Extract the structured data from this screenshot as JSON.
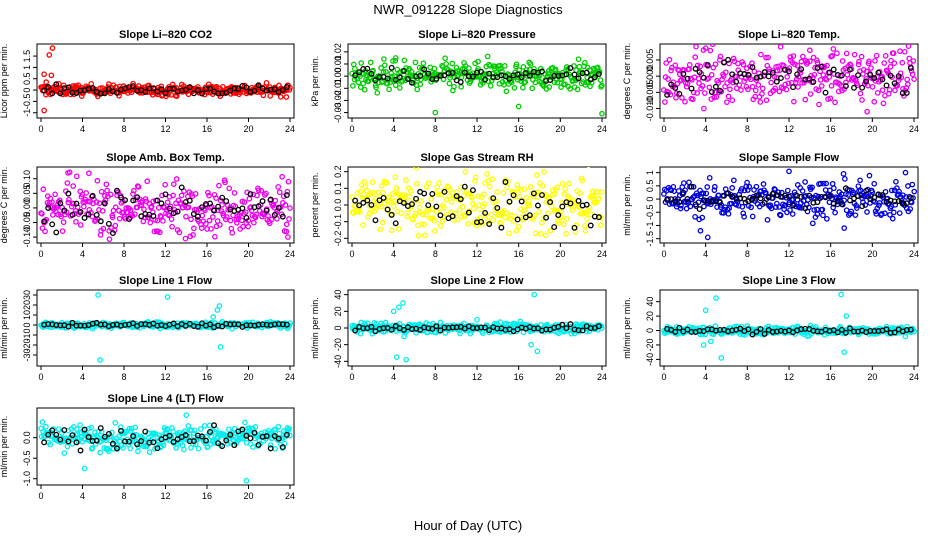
{
  "figure": {
    "title": "NWR_091228  Slope Diagnostics",
    "xlabel": "Hour of Day (UTC)"
  },
  "chart_data": [
    {
      "type": "scatter",
      "title": "Slope Li–820 CO2",
      "ylabel": "Licor ppm per min.",
      "color": "#ff0000",
      "xlim": [
        0,
        24
      ],
      "ylim": [
        -1.1,
        1.9
      ],
      "yticks": [
        "-1",
        "-0.5",
        "0",
        "0.5",
        "1",
        "1.5"
      ],
      "ytick_values": [
        -1,
        -0.5,
        0,
        0.5,
        1,
        1.5
      ],
      "xticks": [
        0,
        4,
        8,
        12,
        16,
        20,
        24
      ],
      "spread": 0.12,
      "black_spread": 0.1,
      "outliers": [
        [
          0.3,
          -0.9
        ],
        [
          0.3,
          0.7
        ],
        [
          0.8,
          1.55
        ],
        [
          1.1,
          1.85
        ],
        [
          1.0,
          0.65
        ],
        [
          0.5,
          0.35
        ]
      ],
      "points": [
        [
          2,
          0.05
        ],
        [
          6,
          0.02
        ],
        [
          10,
          -0.03
        ],
        [
          14,
          0.04
        ],
        [
          18,
          0.0
        ],
        [
          22,
          -0.02
        ]
      ]
    },
    {
      "type": "scatter",
      "title": "Slope Li–820 Pressure",
      "ylabel": "kPa per min.",
      "color": "#00cc00",
      "xlim": [
        0,
        24
      ],
      "ylim": [
        -0.032,
        0.024
      ],
      "yticks": [
        "-0.03",
        "-0.02",
        "-0.01",
        "0.00",
        "0.01",
        "0.02"
      ],
      "ytick_values": [
        -0.03,
        -0.02,
        -0.01,
        0,
        0.01,
        0.02
      ],
      "xticks": [
        0,
        4,
        8,
        12,
        16,
        20,
        24
      ],
      "spread": 0.006,
      "black_spread": 0.003,
      "outliers": [
        [
          8.0,
          -0.03
        ],
        [
          16.0,
          -0.025
        ],
        [
          24.0,
          -0.031
        ],
        [
          4.2,
          0.015
        ],
        [
          12.1,
          0.012
        ]
      ],
      "points": [
        [
          2,
          0.0
        ],
        [
          6,
          0.0
        ],
        [
          10,
          0.0
        ],
        [
          14,
          0.0
        ],
        [
          18,
          0.0
        ],
        [
          22,
          0.0
        ]
      ]
    },
    {
      "type": "scatter",
      "title": "Slope Li–820 Temp.",
      "ylabel": "degrees C per min.",
      "color": "#ee00ee",
      "xlim": [
        0,
        24
      ],
      "ylim": [
        -0.012,
        0.009
      ],
      "yticks": [
        "-0.010",
        "-0.005",
        "0.000",
        "0.005"
      ],
      "ytick_values": [
        -0.01,
        -0.005,
        0,
        0.005
      ],
      "xticks": [
        0,
        4,
        8,
        12,
        16,
        20,
        24
      ],
      "spread": 0.004,
      "black_spread": 0.003,
      "outliers": [
        [
          19.5,
          -0.011
        ],
        [
          14.0,
          0.008
        ]
      ],
      "points": [
        [
          2,
          -0.002
        ],
        [
          6,
          0.0
        ],
        [
          10,
          0.001
        ],
        [
          14,
          0.0
        ],
        [
          18,
          -0.001
        ],
        [
          22,
          0.0
        ]
      ]
    },
    {
      "type": "scatter",
      "title": "Slope Amb. Box Temp.",
      "ylabel": "degrees C per min.",
      "color": "#ee00ee",
      "xlim": [
        0,
        24
      ],
      "ylim": [
        -0.11,
        0.13
      ],
      "yticks": [
        "-0.10",
        "-0.05",
        "0.00",
        "0.05",
        "0.10"
      ],
      "ytick_values": [
        -0.1,
        -0.05,
        0,
        0.05,
        0.1
      ],
      "xticks": [
        0,
        4,
        8,
        12,
        16,
        20,
        24
      ],
      "spread": 0.045,
      "black_spread": 0.035,
      "outliers": [
        [
          23.8,
          -0.1
        ],
        [
          2.6,
          0.12
        ]
      ],
      "points": [
        [
          2,
          0.0
        ],
        [
          6,
          0.01
        ],
        [
          10,
          0.0
        ],
        [
          14,
          0.0
        ],
        [
          18,
          0.0
        ],
        [
          22,
          0.0
        ]
      ]
    },
    {
      "type": "scatter",
      "title": "Slope Gas Stream RH",
      "ylabel": "percent per min.",
      "color": "#ffff00",
      "xlim": [
        0,
        24
      ],
      "ylim": [
        -0.21,
        0.21
      ],
      "yticks": [
        "-0.2",
        "-0.1",
        "0.0",
        "0.1",
        "0.2"
      ],
      "ytick_values": [
        -0.2,
        -0.1,
        0,
        0.1,
        0.2
      ],
      "xticks": [
        0,
        4,
        8,
        12,
        16,
        20,
        24
      ],
      "spread": 0.085,
      "black_spread": 0.07,
      "outliers": [],
      "points": [
        [
          2,
          0.0
        ],
        [
          6,
          0.0
        ],
        [
          10,
          0.0
        ],
        [
          14,
          0.0
        ],
        [
          18,
          0.0
        ],
        [
          22,
          0.0
        ]
      ]
    },
    {
      "type": "scatter",
      "title": "Slope Sample Flow",
      "ylabel": "ml/min per min.",
      "color": "#0000dd",
      "xlim": [
        0,
        24
      ],
      "ylim": [
        -1.55,
        1.1
      ],
      "yticks": [
        "-1.5",
        "-1",
        "-0.5",
        "0",
        "0.5",
        "1"
      ],
      "ytick_values": [
        -1.5,
        -1,
        -0.5,
        0,
        0.5,
        1
      ],
      "xticks": [
        0,
        4,
        8,
        12,
        16,
        20,
        24
      ],
      "spread": 0.35,
      "black_spread": 0.2,
      "outliers": [
        [
          4.2,
          -1.45
        ],
        [
          3.5,
          -1.2
        ],
        [
          12.0,
          1.05
        ],
        [
          17.3,
          -1.1
        ]
      ],
      "points": [
        [
          2,
          0.0
        ],
        [
          6,
          0.05
        ],
        [
          10,
          0.0
        ],
        [
          14,
          0.1
        ],
        [
          18,
          0.0
        ],
        [
          22,
          0.05
        ]
      ]
    },
    {
      "type": "scatter",
      "title": "Slope Line 1 Flow",
      "ylabel": "ml/min per min.",
      "color": "#00eeee",
      "xlim": [
        0,
        24
      ],
      "ylim": [
        -38,
        32
      ],
      "yticks": [
        "-30",
        "-20",
        "-10",
        "0",
        "10",
        "20",
        "30"
      ],
      "ytick_values": [
        -30,
        -20,
        -10,
        0,
        10,
        20,
        30
      ],
      "xticks": [
        0,
        4,
        8,
        12,
        16,
        20,
        24
      ],
      "spread": 1.5,
      "black_spread": 1.0,
      "outliers": [
        [
          5.5,
          30
        ],
        [
          5.7,
          -35
        ],
        [
          12.2,
          28
        ],
        [
          17.0,
          15
        ],
        [
          17.3,
          -22
        ],
        [
          16.6,
          8
        ],
        [
          17.2,
          19
        ]
      ],
      "points": [
        [
          2,
          0.0
        ],
        [
          6,
          0.0
        ],
        [
          10,
          0.0
        ],
        [
          14,
          0.0
        ],
        [
          18,
          0.0
        ],
        [
          22,
          0.0
        ]
      ]
    },
    {
      "type": "scatter",
      "title": "Slope Line 2 Flow",
      "ylabel": "ml/min per min.",
      "color": "#00eeee",
      "xlim": [
        0,
        24
      ],
      "ylim": [
        -42,
        42
      ],
      "yticks": [
        "-40",
        "-20",
        "0",
        "20",
        "40"
      ],
      "ytick_values": [
        -40,
        -20,
        0,
        20,
        40
      ],
      "xticks": [
        0,
        4,
        8,
        12,
        16,
        20,
        24
      ],
      "spread": 3,
      "black_spread": 2,
      "outliers": [
        [
          4.3,
          -35
        ],
        [
          5.2,
          -38
        ],
        [
          4.9,
          30
        ],
        [
          4.5,
          25
        ],
        [
          12.0,
          10
        ],
        [
          17.5,
          40
        ],
        [
          17.8,
          -28
        ],
        [
          17.2,
          -20
        ],
        [
          4.0,
          20
        ],
        [
          5.0,
          -10
        ]
      ],
      "points": [
        [
          2,
          0.0
        ],
        [
          6,
          0.0
        ],
        [
          10,
          0.0
        ],
        [
          14,
          0.0
        ],
        [
          18,
          0.0
        ],
        [
          22,
          0.0
        ]
      ]
    },
    {
      "type": "scatter",
      "title": "Slope Line 3 Flow",
      "ylabel": "ml/min per min.",
      "color": "#00eeee",
      "xlim": [
        0,
        24
      ],
      "ylim": [
        -45,
        52
      ],
      "yticks": [
        "-40",
        "-20",
        "0",
        "20",
        "40"
      ],
      "ytick_values": [
        -40,
        -20,
        0,
        20,
        40
      ],
      "xticks": [
        0,
        4,
        8,
        12,
        16,
        20,
        24
      ],
      "spread": 3,
      "black_spread": 2,
      "outliers": [
        [
          4.0,
          28
        ],
        [
          5.0,
          45
        ],
        [
          5.5,
          -38
        ],
        [
          3.8,
          -20
        ],
        [
          17.3,
          -30
        ],
        [
          17.0,
          50
        ],
        [
          17.5,
          20
        ],
        [
          4.5,
          -15
        ]
      ],
      "points": [
        [
          2,
          0.0
        ],
        [
          6,
          0.0
        ],
        [
          10,
          0.0
        ],
        [
          14,
          0.0
        ],
        [
          18,
          0.0
        ],
        [
          22,
          0.0
        ]
      ]
    },
    {
      "type": "scatter",
      "title": "Slope Line 4 (LT) Flow",
      "ylabel": "ml/min per min.",
      "color": "#00eeee",
      "xlim": [
        0,
        24
      ],
      "ylim": [
        -1.08,
        0.65
      ],
      "yticks": [
        "-1.0",
        "-0.5",
        "0.0"
      ],
      "ytick_values": [
        -1,
        -0.5,
        0
      ],
      "xticks": [
        0,
        4,
        8,
        12,
        16,
        20,
        24
      ],
      "spread": 0.15,
      "black_spread": 0.12,
      "outliers": [
        [
          4.2,
          -0.75
        ],
        [
          19.8,
          -1.05
        ],
        [
          14.0,
          0.55
        ]
      ],
      "points": [
        [
          2,
          0.0
        ],
        [
          6,
          0.0
        ],
        [
          10,
          0.0
        ],
        [
          14,
          0.0
        ],
        [
          18,
          0.0
        ],
        [
          22,
          0.0
        ]
      ]
    }
  ]
}
